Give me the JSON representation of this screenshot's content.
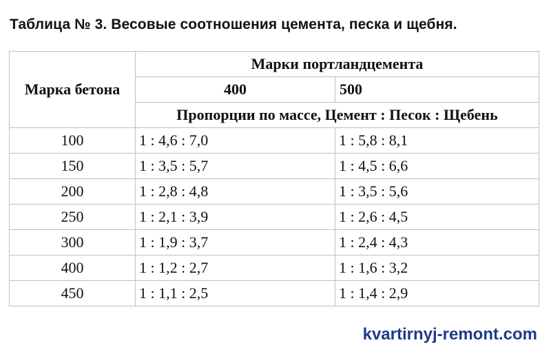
{
  "title": "Таблица № 3. Весовые соотношения цемента, песка и щебня.",
  "table": {
    "col_grade_header": "Марка бетона",
    "group_header": "Марки портландцемента",
    "cement_grades": [
      "400",
      "500"
    ],
    "proportions_header": "Пропорции по массе, Цемент : Песок : Щебень",
    "rows": [
      {
        "grade": "100",
        "c400": "1 : 4,6 : 7,0",
        "c500": "1 : 5,8 : 8,1"
      },
      {
        "grade": "150",
        "c400": "1 : 3,5 : 5,7",
        "c500": "1 : 4,5 : 6,6"
      },
      {
        "grade": "200",
        "c400": "1 : 2,8 : 4,8",
        "c500": "1 : 3,5 : 5,6"
      },
      {
        "grade": "250",
        "c400": "1 : 2,1 : 3,9",
        "c500": "1 : 2,6 : 4,5"
      },
      {
        "grade": "300",
        "c400": "1 : 1,9 : 3,7",
        "c500": "1 : 2,4 : 4,3"
      },
      {
        "grade": "400",
        "c400": "1 : 1,2 : 2,7",
        "c500": "1 : 1,6 : 3,2"
      },
      {
        "grade": "450",
        "c400": "1 : 1,1 : 2,5",
        "c500": "1 : 1,4 : 2,9"
      }
    ]
  },
  "watermark": "kvartirnyj-remont.com",
  "colors": {
    "border": "#bfbfbf",
    "text": "#111111",
    "watermark": "#1f3a8a"
  }
}
